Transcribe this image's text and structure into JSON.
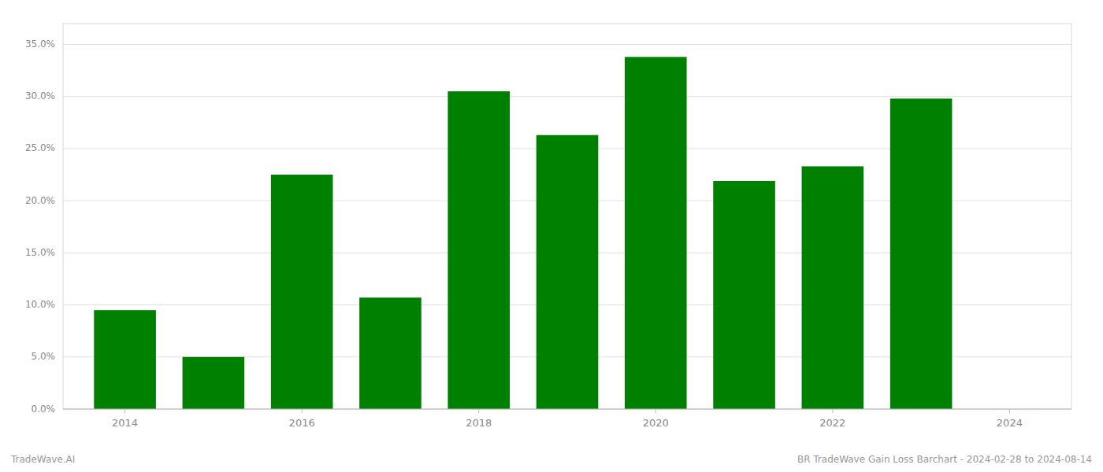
{
  "chart_data": {
    "type": "bar",
    "x": [
      2014,
      2015,
      2016,
      2017,
      2018,
      2019,
      2020,
      2021,
      2022,
      2023
    ],
    "values": [
      0.095,
      0.05,
      0.225,
      0.107,
      0.305,
      0.263,
      0.338,
      0.219,
      0.233,
      0.298
    ],
    "color": "#008000",
    "xlim": [
      2013.3,
      2024.7
    ],
    "xticks": [
      2014,
      2016,
      2018,
      2020,
      2022,
      2024
    ],
    "ylim": [
      0,
      0.37
    ],
    "yticks": [
      {
        "value": 0.0,
        "label": "0.0%"
      },
      {
        "value": 0.05,
        "label": "5.0%"
      },
      {
        "value": 0.1,
        "label": "10.0%"
      },
      {
        "value": 0.15,
        "label": "15.0%"
      },
      {
        "value": 0.2,
        "label": "20.0%"
      },
      {
        "value": 0.25,
        "label": "25.0%"
      },
      {
        "value": 0.3,
        "label": "30.0%"
      },
      {
        "value": 0.35,
        "label": "35.0%"
      }
    ],
    "grid": true,
    "annotations": [
      "TradeWave.AI",
      "BR TradeWave Gain Loss Barchart - 2024-02-28 to 2024-08-14"
    ]
  }
}
